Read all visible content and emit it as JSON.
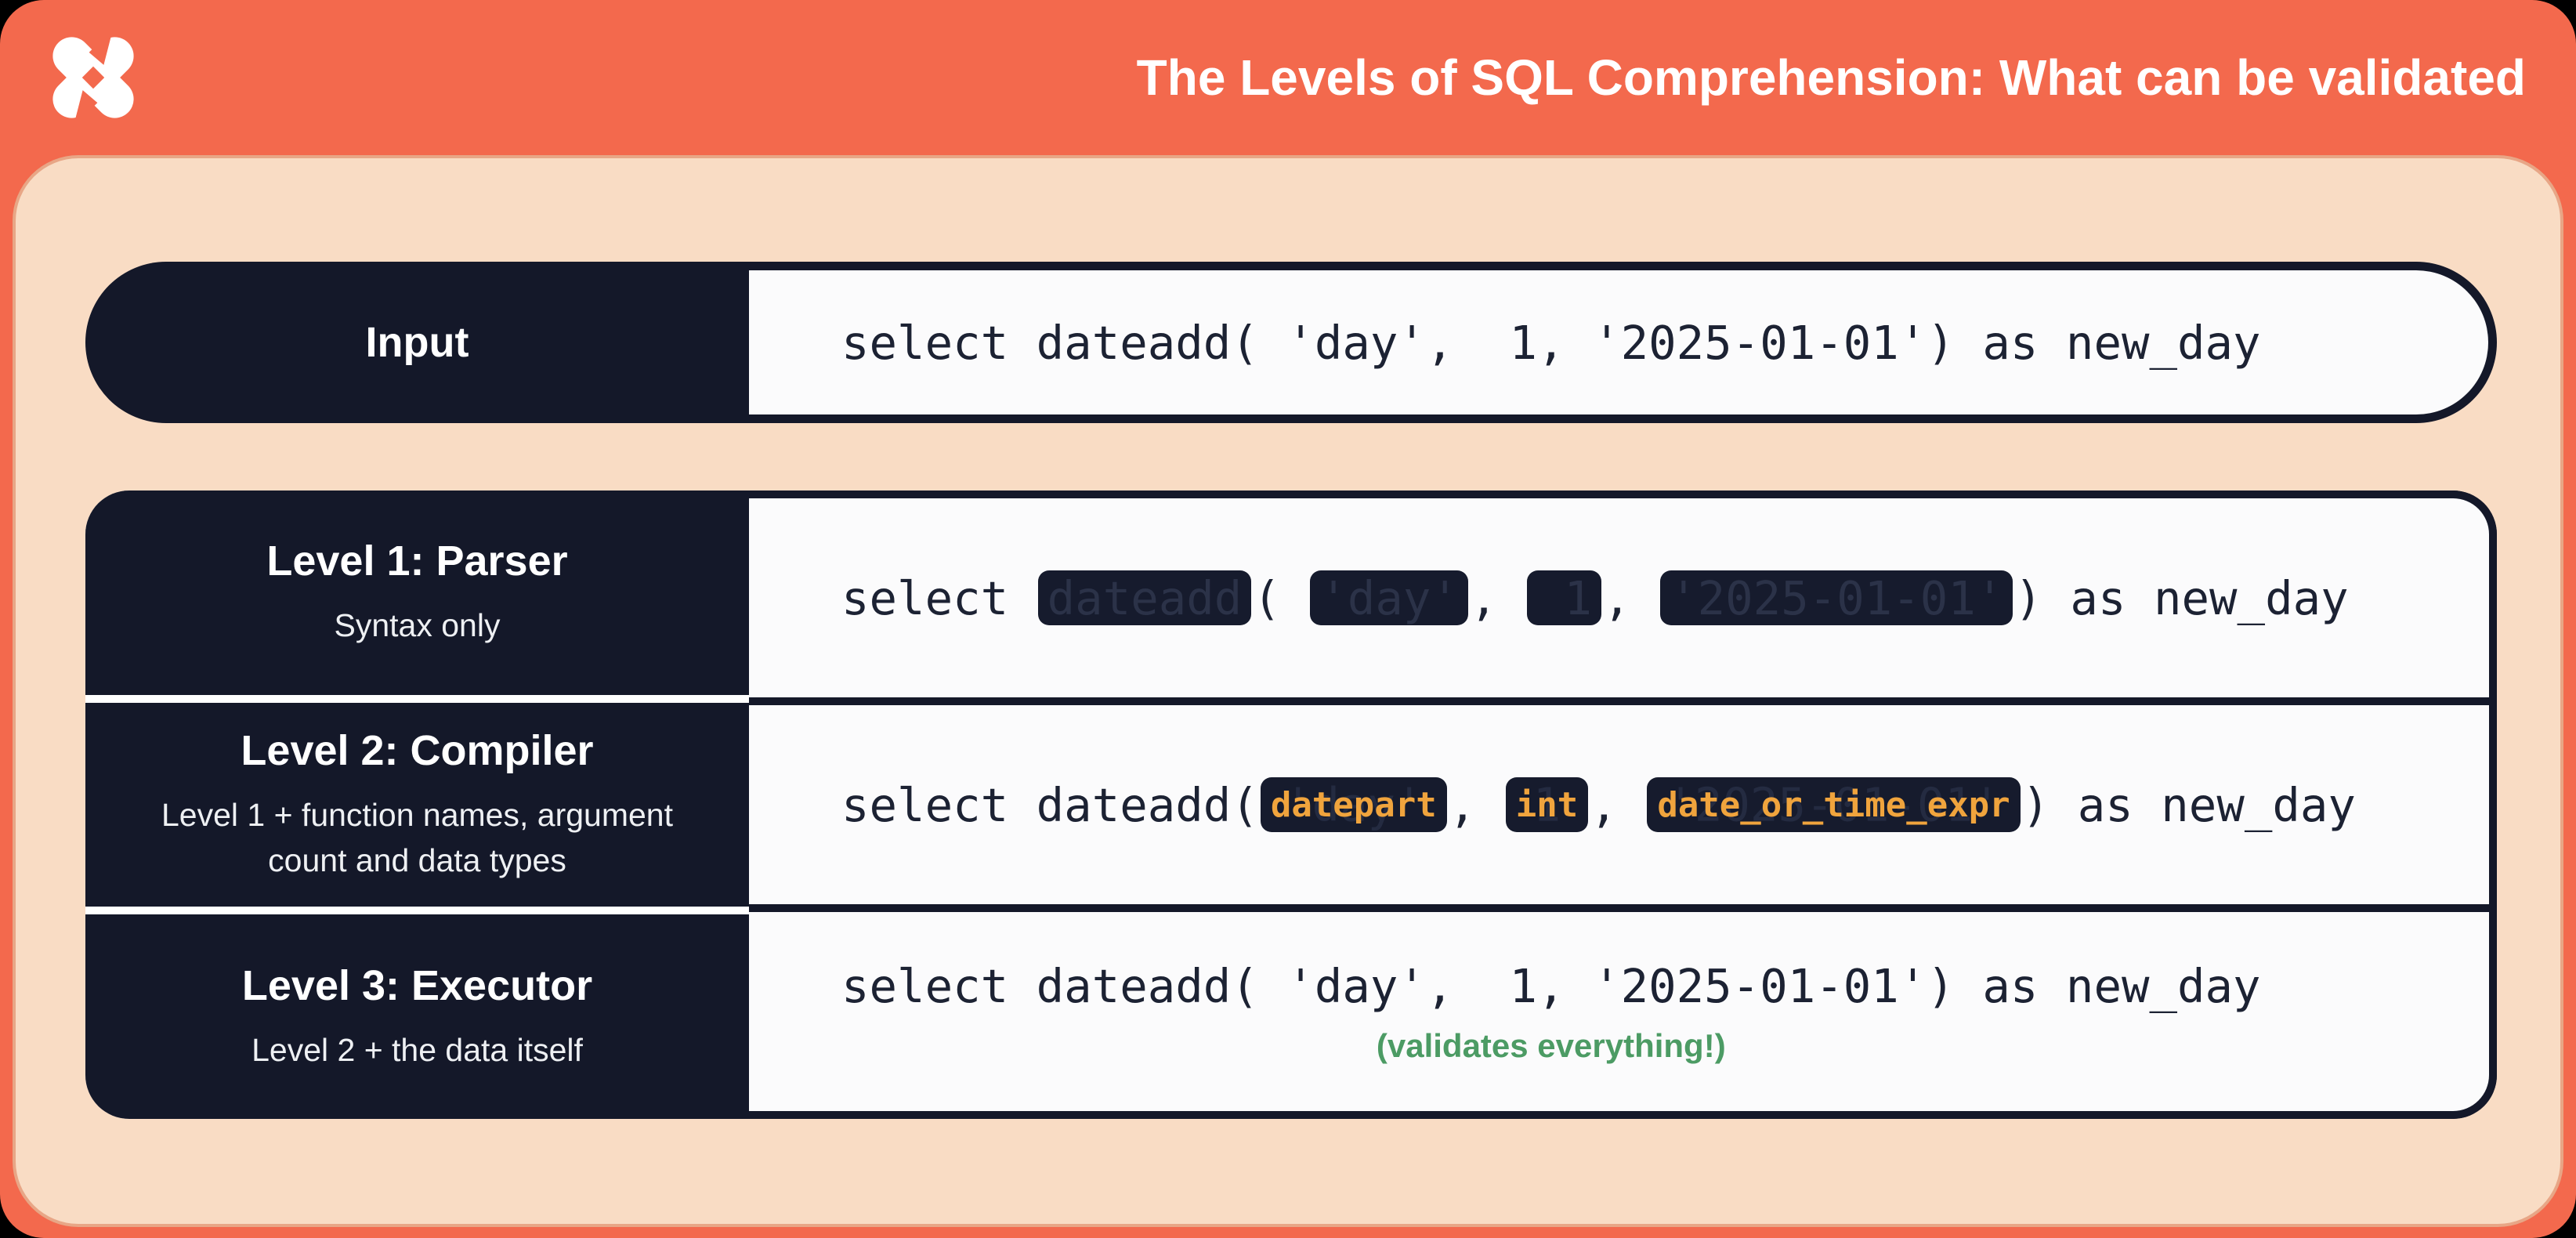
{
  "header": {
    "title": "The Levels of SQL Comprehension: What can be validated",
    "logo": "dbt-logo"
  },
  "input_row": {
    "label": "Input",
    "code": "select dateadd( 'day',  1, '2025-01-01') as new_day"
  },
  "levels": [
    {
      "title": "Level 1: Parser",
      "subtitle": "Syntax only",
      "segments": [
        {
          "t": "text",
          "v": "select "
        },
        {
          "t": "redact",
          "ghost": "dateadd"
        },
        {
          "t": "text",
          "v": "( "
        },
        {
          "t": "redact",
          "ghost": "'day'"
        },
        {
          "t": "text",
          "v": ", "
        },
        {
          "t": "redact",
          "ghost": " 1"
        },
        {
          "t": "text",
          "v": ", "
        },
        {
          "t": "redact",
          "ghost": "'2025-01-01'"
        },
        {
          "t": "text",
          "v": ") as new_day"
        }
      ]
    },
    {
      "title": "Level 2: Compiler",
      "subtitle": "Level 1 + function names, argument count and data types",
      "segments": [
        {
          "t": "text",
          "v": "select dateadd("
        },
        {
          "t": "token",
          "ghost": "'day'",
          "label": "datepart"
        },
        {
          "t": "text",
          "v": ", "
        },
        {
          "t": "token",
          "ghost": "1",
          "label": "int"
        },
        {
          "t": "text",
          "v": ", "
        },
        {
          "t": "token",
          "ghost": "'2025-01-01'",
          "label": "date_or_time_expr"
        },
        {
          "t": "text",
          "v": ") as new_day"
        }
      ]
    },
    {
      "title": "Level 3: Executor",
      "subtitle": "Level 2 + the data itself",
      "segments": [
        {
          "t": "text",
          "v": "select dateadd( 'day',  1, '2025-01-01') as new_day"
        }
      ],
      "note": "(validates everything!)"
    }
  ],
  "colors": {
    "orange": "#f3694d",
    "peach": "#f9dcc4",
    "navy": "#141829",
    "panel_white": "#fbfbfc",
    "code_ink": "#1c2233",
    "ghost_text": "#2b3248",
    "token_orange": "#f0a43d",
    "note_green": "#4c9b64"
  }
}
